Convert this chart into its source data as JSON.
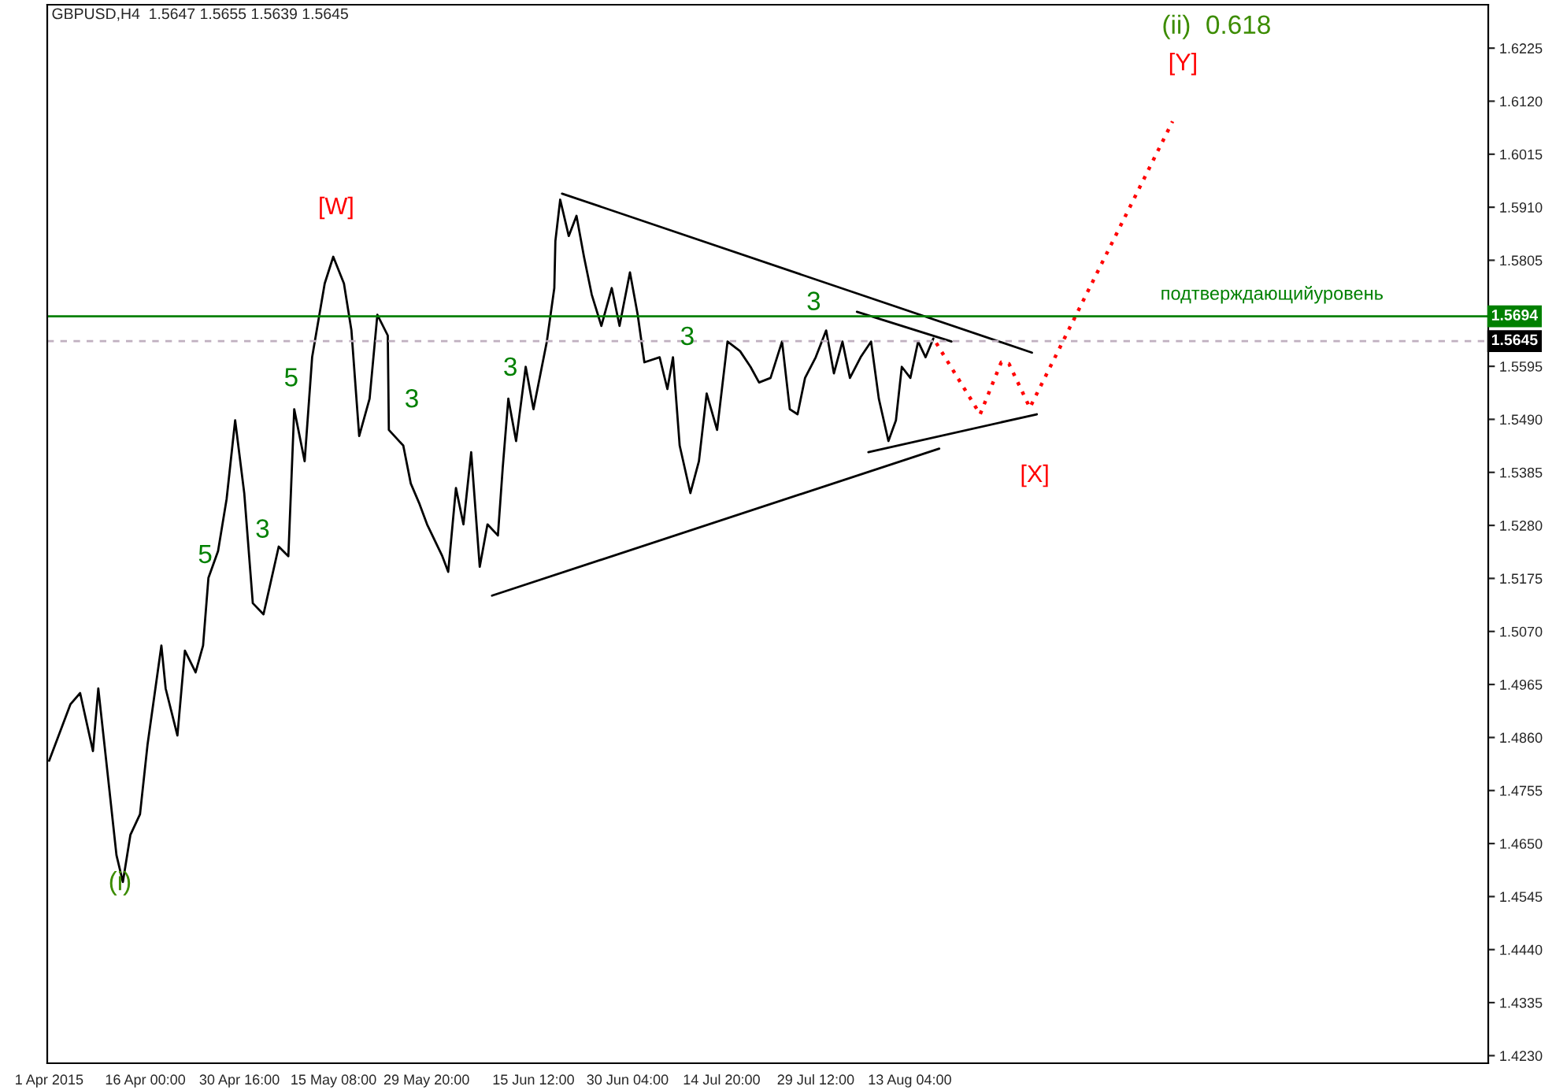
{
  "chart_data": {
    "type": "line",
    "title": "GBPUSD,H4  1.5647 1.5655 1.5639 1.5645",
    "xlim": [
      "2015-03-31T17:00",
      "2015-11-11T08:00"
    ],
    "xticks": [
      {
        "value": "2015-04-01",
        "label": "1 Apr 2015"
      },
      {
        "value": "2015-04-16T00:00",
        "label": "16 Apr 00:00"
      },
      {
        "value": "2015-04-30T16:00",
        "label": "30 Apr 16:00"
      },
      {
        "value": "2015-05-15T08:00",
        "label": "15 May 08:00"
      },
      {
        "value": "2015-05-29T20:00",
        "label": "29 May 20:00"
      },
      {
        "value": "2015-06-15T12:00",
        "label": "15 Jun 12:00"
      },
      {
        "value": "2015-06-30T04:00",
        "label": "30 Jun 04:00"
      },
      {
        "value": "2015-07-14T20:00",
        "label": "14 Jul 20:00"
      },
      {
        "value": "2015-07-29T12:00",
        "label": "29 Jul 12:00"
      },
      {
        "value": "2015-08-13T04:00",
        "label": "13 Aug 04:00"
      }
    ],
    "ylim": [
      1.4215,
      1.6311
    ],
    "yticks": [
      {
        "value": 1.423,
        "label": "1.4230"
      },
      {
        "value": 1.4335,
        "label": "1.4335"
      },
      {
        "value": 1.444,
        "label": "1.4440"
      },
      {
        "value": 1.4545,
        "label": "1.4545"
      },
      {
        "value": 1.465,
        "label": "1.4650"
      },
      {
        "value": 1.4755,
        "label": "1.4755"
      },
      {
        "value": 1.486,
        "label": "1.4860"
      },
      {
        "value": 1.4965,
        "label": "1.4965"
      },
      {
        "value": 1.507,
        "label": "1.5070"
      },
      {
        "value": 1.5175,
        "label": "1.5175"
      },
      {
        "value": 1.528,
        "label": "1.5280"
      },
      {
        "value": 1.5385,
        "label": "1.5385"
      },
      {
        "value": 1.549,
        "label": "1.5490"
      },
      {
        "value": 1.5595,
        "label": "1.5595"
      },
      {
        "value": 1.5805,
        "label": "1.5805"
      },
      {
        "value": 1.591,
        "label": "1.5910"
      },
      {
        "value": 1.6015,
        "label": "1.6015"
      },
      {
        "value": 1.612,
        "label": "1.6120"
      },
      {
        "value": 1.6225,
        "label": "1.6225"
      }
    ],
    "grid": false,
    "marker": "none",
    "series": [
      {
        "color": "#000000",
        "line_style": "solid",
        "x": [
          "2015-04-01T00:00",
          "2015-04-04T08:00",
          "2015-04-05T20:00",
          "2015-04-07T20:00",
          "2015-04-08T16:00",
          "2015-04-10T04:00",
          "2015-04-11T12:00",
          "2015-04-12T12:00",
          "2015-04-13T16:00",
          "2015-04-15T04:00",
          "2015-04-16T08:00",
          "2015-04-18T12:00",
          "2015-04-19T04:00",
          "2015-04-21T00:00",
          "2015-04-22T04:00",
          "2015-04-23T20:00",
          "2015-04-25T00:00",
          "2015-04-25T20:00",
          "2015-04-27T08:00",
          "2015-04-28T16:00",
          "2015-04-30T00:00",
          "2015-05-01T10:00",
          "2015-05-02T18:00",
          "2015-05-04T10:00",
          "2015-05-06T19:00",
          "2015-05-08T07:00",
          "2015-05-09T05:00",
          "2015-05-10T20:00",
          "2015-05-12T00:00",
          "2015-05-13T23:00",
          "2015-05-15T07:00",
          "2015-05-16T23:00",
          "2015-05-18T03:00",
          "2015-05-19T08:00",
          "2015-05-20T23:00",
          "2015-05-22T04:00",
          "2015-05-23T19:00",
          "2015-05-23T23:00",
          "2015-05-26T05:00",
          "2015-05-27T09:00",
          "2015-05-28T18:00",
          "2015-05-29T22:00",
          "2015-06-01T07:00",
          "2015-06-02T05:00",
          "2015-06-03T10:00",
          "2015-06-04T14:00",
          "2015-06-05T19:00",
          "2015-06-07T03:00",
          "2015-06-08T08:00",
          "2015-06-09T23:00",
          "2015-06-10T17:00",
          "2015-06-11T14:00",
          "2015-06-12T19:00",
          "2015-06-14T07:00",
          "2015-06-15T12:00",
          "2015-06-17T14:00",
          "2015-06-18T18:00",
          "2015-06-18T22:00",
          "2015-06-19T16:00",
          "2015-06-21T00:00",
          "2015-06-22T05:00",
          "2015-06-23T09:00",
          "2015-06-24T14:00",
          "2015-06-26T02:00",
          "2015-06-27T17:00",
          "2015-06-28T22:00",
          "2015-06-30T13:00",
          "2015-07-01T18:00",
          "2015-07-02T19:00",
          "2015-07-05T04:00",
          "2015-07-06T09:00",
          "2015-07-07T06:00",
          "2015-07-08T07:00",
          "2015-07-09T23:00",
          "2015-07-11T07:00",
          "2015-07-12T12:00",
          "2015-07-14T03:00",
          "2015-07-15T18:00",
          "2015-07-17T17:00",
          "2015-07-19T08:00",
          "2015-07-20T16:00",
          "2015-07-22T11:00",
          "2015-07-24T06:00",
          "2015-07-25T11:00",
          "2015-07-26T16:00",
          "2015-07-27T20:00",
          "2015-07-29T12:00",
          "2015-07-31T03:00",
          "2015-08-01T08:00",
          "2015-08-02T16:00",
          "2015-08-03T20:00",
          "2015-08-05T12:00",
          "2015-08-07T03:00",
          "2015-08-08T08:00",
          "2015-08-09T20:00",
          "2015-08-11T00:00",
          "2015-08-11T22:00",
          "2015-08-13T06:00",
          "2015-08-14T11:00",
          "2015-08-15T15:00",
          "2015-08-16T20:00"
        ],
        "values": [
          1.4814,
          1.4926,
          1.4948,
          1.4833,
          1.4957,
          1.4783,
          1.4627,
          1.4574,
          1.4667,
          1.4708,
          1.4845,
          1.5042,
          1.4957,
          1.4864,
          1.5032,
          1.4989,
          1.5042,
          1.5176,
          1.5229,
          1.5332,
          1.5488,
          1.5344,
          1.5126,
          1.5104,
          1.5238,
          1.5219,
          1.551,
          1.5407,
          1.5613,
          1.5759,
          1.5812,
          1.5759,
          1.5666,
          1.5457,
          1.5531,
          1.5697,
          1.5656,
          1.5469,
          1.5438,
          1.5363,
          1.5322,
          1.5282,
          1.5219,
          1.5188,
          1.5354,
          1.5282,
          1.5425,
          1.5198,
          1.5282,
          1.526,
          1.5394,
          1.5531,
          1.5447,
          1.5594,
          1.551,
          1.5644,
          1.575,
          1.5843,
          1.5925,
          1.5853,
          1.5893,
          1.5812,
          1.5737,
          1.5675,
          1.575,
          1.5675,
          1.5781,
          1.5697,
          1.5603,
          1.5613,
          1.555,
          1.5613,
          1.5438,
          1.5344,
          1.5407,
          1.5541,
          1.5469,
          1.5644,
          1.5625,
          1.5594,
          1.5563,
          1.5572,
          1.5644,
          1.551,
          1.55,
          1.5572,
          1.5613,
          1.5666,
          1.5581,
          1.5644,
          1.5572,
          1.5613,
          1.5644,
          1.5531,
          1.5447,
          1.5488,
          1.5594,
          1.5572,
          1.5644,
          1.5613,
          1.565
        ]
      },
      {
        "color": "#000000",
        "line_style": "solid",
        "x": [
          "2015-06-19T23:00",
          "2015-09-01T05:00"
        ],
        "values": [
          1.5937,
          1.5622
        ]
      },
      {
        "color": "#000000",
        "line_style": "solid",
        "x": [
          "2015-06-09T01:00",
          "2015-08-17T18:00"
        ],
        "values": [
          1.5141,
          1.5432
        ]
      },
      {
        "color": "#000000",
        "line_style": "solid",
        "x": [
          "2015-08-06T17:00",
          "2015-09-01T23:00"
        ],
        "values": [
          1.5425,
          1.55
        ]
      },
      {
        "color": "#000000",
        "line_style": "solid",
        "x": [
          "2015-08-04T22:00",
          "2015-08-19T16:00"
        ],
        "values": [
          1.5703,
          1.5644
        ]
      },
      {
        "color": "#ff0000",
        "line_style": "dotted",
        "x": [
          "2015-08-17T07:00",
          "2015-08-24T03:00",
          "2015-08-27T10:00",
          "2015-08-28T15:00",
          "2015-08-31T21:00",
          "2015-09-23T03:00"
        ],
        "values": [
          1.5641,
          1.55,
          1.5603,
          1.56,
          1.5513,
          1.608
        ]
      }
    ],
    "ref_lines": [
      {
        "axis": "y",
        "value": 1.5694,
        "label": "1.5694",
        "color": "#008000",
        "line_style": "solid"
      },
      {
        "axis": "y",
        "value": 1.5645,
        "label": "1.5645",
        "color": "#c0b0c0",
        "line_style": "dashed"
      }
    ],
    "annotations": [
      "(i)",
      "5",
      "3",
      "5",
      "[W]",
      "3",
      "3",
      "3",
      "3",
      "[X]",
      "(ii)  0.618",
      "[Y]",
      "подтверждающийуровень"
    ]
  }
}
